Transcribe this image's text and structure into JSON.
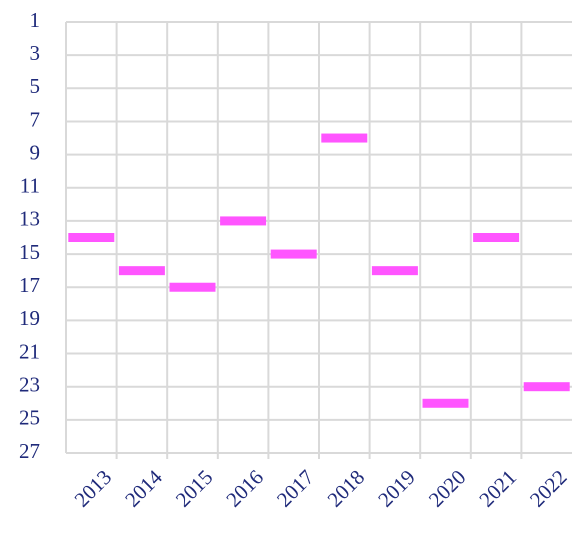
{
  "chart_data": {
    "type": "scatter",
    "marker": "dash",
    "categories": [
      "2013",
      "2014",
      "2015",
      "2016",
      "2017",
      "2018",
      "2019",
      "2020",
      "2021",
      "2022"
    ],
    "values": [
      14,
      16,
      17,
      13,
      15,
      8,
      16,
      24,
      14,
      23
    ],
    "color": "#ff55ff",
    "ylim": [
      1,
      27
    ],
    "y_reversed": true,
    "yticks": [
      1,
      3,
      5,
      7,
      9,
      11,
      13,
      15,
      17,
      19,
      21,
      23,
      25,
      27
    ],
    "grid": true
  }
}
